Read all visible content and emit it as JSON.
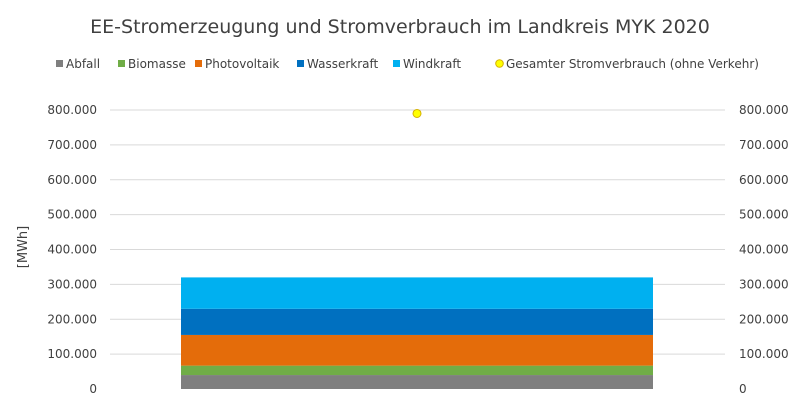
{
  "chart_data": {
    "type": "bar",
    "title": "EE-Stromerzeugung und Stromverbrauch im Landkreis MYK 2020",
    "ylabel": "[MWh]",
    "ylim": [
      0,
      800000
    ],
    "ytick_labels": [
      "0",
      "100.000",
      "200.000",
      "300.000",
      "400.000",
      "500.000",
      "600.000",
      "700.000",
      "800.000"
    ],
    "grid": true,
    "legend_position": "top",
    "series": [
      {
        "name": "Abfall",
        "value": 40000,
        "color": "#7f7f7f",
        "kind": "bar"
      },
      {
        "name": "Biomasse",
        "value": 27000,
        "color": "#70ad47",
        "kind": "bar"
      },
      {
        "name": "Photovoltaik",
        "value": 88000,
        "color": "#e46c0a",
        "kind": "bar"
      },
      {
        "name": "Wasserkraft",
        "value": 75000,
        "color": "#0070c0",
        "kind": "bar"
      },
      {
        "name": "Windkraft",
        "value": 90000,
        "color": "#00b0f0",
        "kind": "bar"
      },
      {
        "name": "Gesamter Stromverbrauch (ohne Verkehr)",
        "value": 790000,
        "color": "#ffff00",
        "kind": "point"
      }
    ]
  }
}
